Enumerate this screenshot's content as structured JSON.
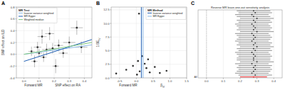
{
  "chart_data": [
    {
      "panel_label": "A",
      "type": "scatter",
      "title": "MR Test",
      "caption": "Forward MR",
      "x_label": "SNP effect on RA",
      "y_label": "SNP effect on ILD",
      "xlim": [
        -0.05,
        0.45
      ],
      "ylim": [
        -0.4,
        0.8
      ],
      "xticks": [
        {
          "value": 0,
          "label": "0.0"
        },
        0.1,
        0.2,
        0.3,
        0.4
      ],
      "yticks": [
        -0.4,
        -0.2,
        {
          "value": 0,
          "label": "0.0"
        },
        0.2,
        0.4,
        0.6,
        0.8
      ],
      "grid": true,
      "legend": "top-left",
      "series": [
        {
          "type": "scatter",
          "color": "#333333",
          "marker": "circle",
          "x": [
            0.05,
            0.07,
            0.09,
            0.1,
            0.12,
            0.13,
            0.15,
            0.17,
            0.19,
            0.21,
            0.23,
            0.26,
            0.3,
            0.35,
            0.38
          ],
          "values": [
            0.05,
            -0.12,
            0.12,
            0.02,
            0.3,
            -0.05,
            0.08,
            0.35,
            0.1,
            -0.2,
            0.15,
            0.02,
            0.2,
            0.45,
            0.12
          ],
          "x_error": [
            0.02,
            0.02,
            0.025,
            0.02,
            0.03,
            0.02,
            0.03,
            0.03,
            0.03,
            0.02,
            0.03,
            0.03,
            0.04,
            0.04,
            0.04
          ],
          "y_error": [
            0.08,
            0.1,
            0.09,
            0.07,
            0.12,
            0.08,
            0.1,
            0.11,
            0.09,
            0.12,
            0.1,
            0.08,
            0.1,
            0.12,
            0.1
          ]
        },
        {
          "name": "Inverse variance weighted",
          "type": "line",
          "color": "#8ab8e6",
          "x": [
            0,
            0.45
          ],
          "values": [
            0,
            0.16
          ]
        },
        {
          "name": "MR Egger",
          "type": "line",
          "color": "#1f5fb4",
          "x": [
            0,
            0.45
          ],
          "values": [
            -0.12,
            0.25
          ]
        },
        {
          "name": "Weighted median",
          "type": "line",
          "color": "#7fc97f",
          "x": [
            0,
            0.45
          ],
          "values": [
            0,
            0.2
          ]
        }
      ]
    },
    {
      "panel_label": "B",
      "type": "scatter",
      "title": "MR Method",
      "caption": "Forward MR",
      "x_label": "β",
      "x_label_sub": "IV",
      "y_label": "1/SE",
      "y_label_sub": "IV",
      "xlim": [
        -0.75,
        1.5
      ],
      "ylim": [
        0,
        13
      ],
      "xticks": [
        -0.5,
        {
          "value": 0,
          "label": "0.0"
        },
        0.5,
        {
          "value": 1,
          "label": "1.0"
        },
        1.5
      ],
      "yticks": [
        {
          "value": 0,
          "label": "0.0"
        },
        2.5,
        {
          "value": 5,
          "label": "5.0"
        },
        7.5,
        {
          "value": 10,
          "label": "10.0"
        },
        12.5
      ],
      "grid": true,
      "legend": "top-right",
      "series": [
        {
          "type": "scatter",
          "color": "#333333",
          "marker": "circle",
          "x": [
            -0.6,
            -0.3,
            -0.1,
            0.05,
            0.1,
            0.18,
            0.25,
            0.3,
            0.4,
            0.55,
            0.7,
            0.9,
            0.08,
            0.02,
            0.35
          ],
          "values": [
            0.8,
            1.5,
            2.2,
            3.1,
            1.2,
            4.0,
            2.6,
            1.8,
            1.0,
            2.0,
            0.9,
            1.3,
            11.8,
            0.6,
            3.4
          ]
        },
        {
          "name": "Inverse variance weighted",
          "type": "vline",
          "color": "#1f5fb4",
          "value": 0.15
        },
        {
          "name": "MR Egger",
          "type": "vline",
          "color": "#8ab8e6",
          "value": 0.2
        }
      ]
    },
    {
      "panel_label": "C",
      "type": "forest",
      "title": "Reverse MR leave-one-out sensitivity analysis",
      "xlim": [
        -0.05,
        0.45
      ],
      "xticks": [
        {
          "value": 0,
          "label": "0.0"
        },
        0.1,
        0.2,
        0.3,
        0.4
      ],
      "grid": true,
      "reference": 0,
      "categories": [
        null,
        null,
        null,
        null,
        null,
        null,
        null,
        null,
        null,
        null,
        null,
        null,
        null,
        null,
        null,
        null,
        null,
        null,
        null,
        null,
        null,
        null,
        null,
        null,
        null,
        null,
        null,
        null,
        null,
        null,
        null,
        null,
        null,
        null,
        null,
        "All"
      ],
      "values": [
        0.28,
        0.29,
        0.27,
        0.28,
        0.3,
        0.28,
        0.29,
        0.27,
        0.28,
        0.29,
        0.28,
        0.3,
        0.27,
        0.28,
        0.29,
        0.28,
        0.27,
        0.29,
        0.28,
        0.3,
        0.28,
        0.29,
        0.27,
        0.28,
        0.29,
        0.28,
        0.28,
        0.3,
        0.27,
        0.29,
        0.28,
        0.29,
        0.28,
        0.27,
        0.29,
        0.28
      ],
      "lower": [
        0.18,
        0.19,
        0.17,
        0.18,
        0.2,
        0.18,
        0.19,
        0.17,
        0.18,
        0.19,
        0.18,
        0.2,
        0.17,
        0.18,
        0.19,
        0.18,
        0.17,
        0.19,
        0.18,
        0.2,
        0.18,
        0.19,
        0.17,
        0.18,
        0.19,
        0.18,
        0.18,
        0.2,
        0.17,
        0.19,
        0.18,
        0.19,
        0.18,
        0.17,
        0.19,
        0.2
      ],
      "upper": [
        0.38,
        0.39,
        0.37,
        0.38,
        0.4,
        0.38,
        0.39,
        0.37,
        0.38,
        0.39,
        0.38,
        0.4,
        0.37,
        0.38,
        0.39,
        0.38,
        0.37,
        0.39,
        0.38,
        0.4,
        0.38,
        0.39,
        0.37,
        0.38,
        0.39,
        0.38,
        0.38,
        0.4,
        0.37,
        0.39,
        0.38,
        0.39,
        0.38,
        0.37,
        0.39,
        0.36
      ],
      "colors": [
        "#222222",
        "#222222",
        "#222222",
        "#222222",
        "#222222",
        "#222222",
        "#222222",
        "#222222",
        "#222222",
        "#222222",
        "#222222",
        "#222222",
        "#222222",
        "#222222",
        "#222222",
        "#222222",
        "#222222",
        "#222222",
        "#222222",
        "#222222",
        "#222222",
        "#222222",
        "#222222",
        "#222222",
        "#222222",
        "#222222",
        "#222222",
        "#222222",
        "#222222",
        "#222222",
        "#222222",
        "#222222",
        "#222222",
        "#222222",
        "#222222",
        "#e41a1c"
      ]
    }
  ]
}
